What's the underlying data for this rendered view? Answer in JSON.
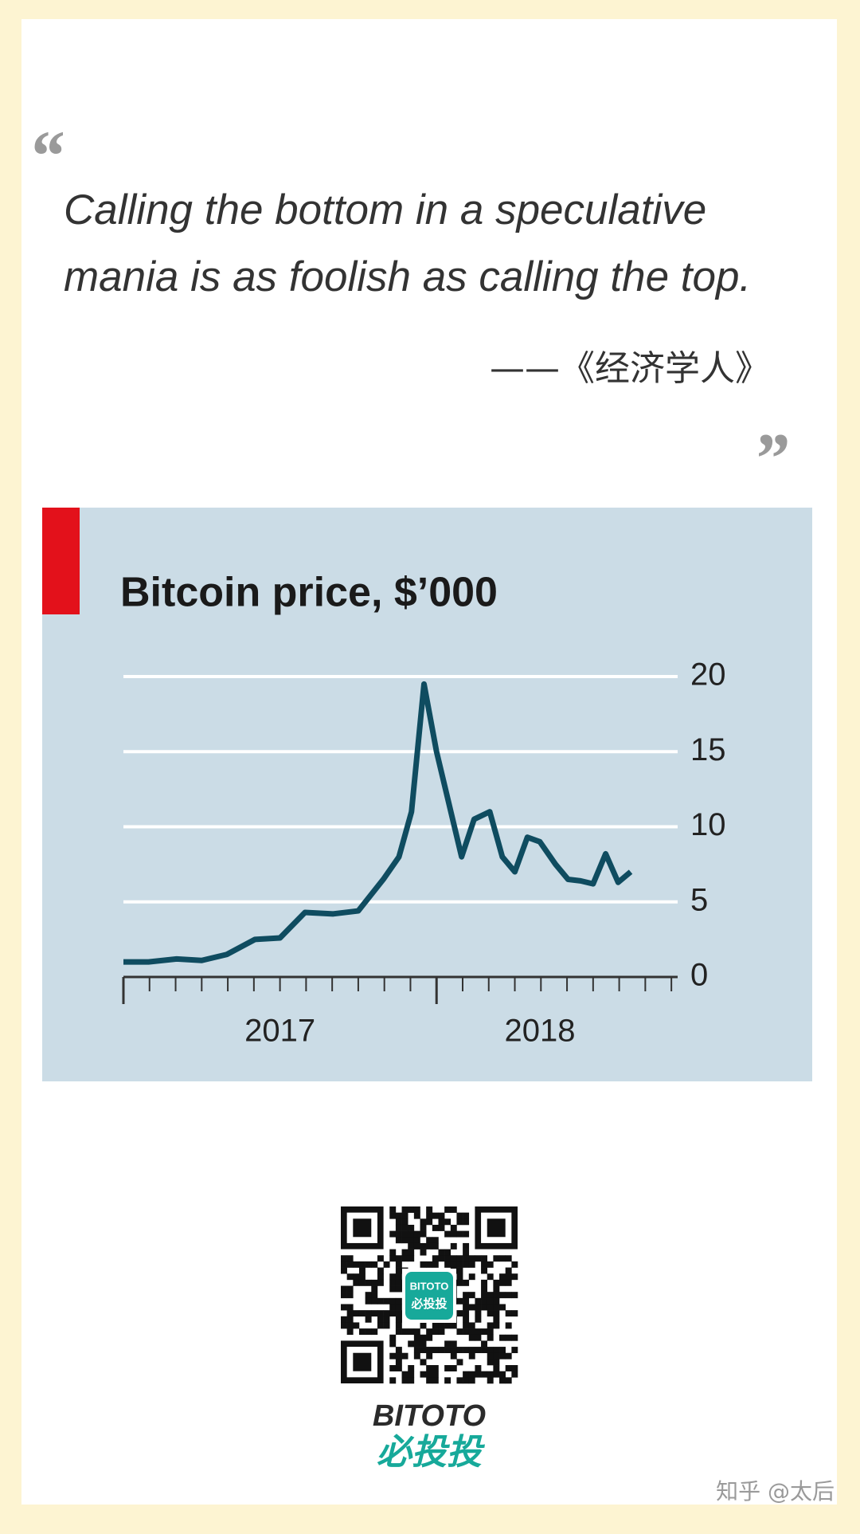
{
  "quote": {
    "lines": [
      "Calling the bottom in a speculative",
      "mania is as foolish as calling the top."
    ],
    "attribution": "——《经济学人》"
  },
  "chart_data": {
    "type": "line",
    "title": "Bitcoin price, $’000",
    "x": [
      2017.0,
      2017.08,
      2017.17,
      2017.25,
      2017.33,
      2017.42,
      2017.5,
      2017.58,
      2017.67,
      2017.75,
      2017.83,
      2017.88,
      2017.92,
      2017.96,
      2018.0,
      2018.04,
      2018.08,
      2018.12,
      2018.17,
      2018.21,
      2018.25,
      2018.29,
      2018.33,
      2018.38,
      2018.42,
      2018.46,
      2018.5,
      2018.54,
      2018.58,
      2018.62
    ],
    "series": [
      {
        "color": "#0f4c60",
        "values": [
          1.0,
          1.0,
          1.2,
          1.1,
          1.5,
          2.5,
          2.6,
          4.3,
          4.2,
          4.4,
          6.5,
          8.0,
          11.0,
          19.5,
          15.0,
          11.5,
          8.0,
          10.5,
          11.0,
          8.0,
          7.0,
          9.3,
          9.0,
          7.5,
          6.5,
          6.4,
          6.2,
          8.2,
          6.3,
          7.0
        ]
      }
    ],
    "xlim": [
      2017.0,
      2018.77
    ],
    "xticks": [
      {
        "value": 2017.5,
        "label": "2017"
      },
      {
        "value": 2018.33,
        "label": "2018"
      }
    ],
    "ylim": [
      0,
      20
    ],
    "yticks": [
      0,
      5,
      10,
      15,
      20
    ],
    "grid": true
  },
  "brand": {
    "name": "BITOTO",
    "chinese": "必投投",
    "badge_top": "BITOTO",
    "badge_bottom": "必投投"
  },
  "watermark": "知乎 @太后"
}
